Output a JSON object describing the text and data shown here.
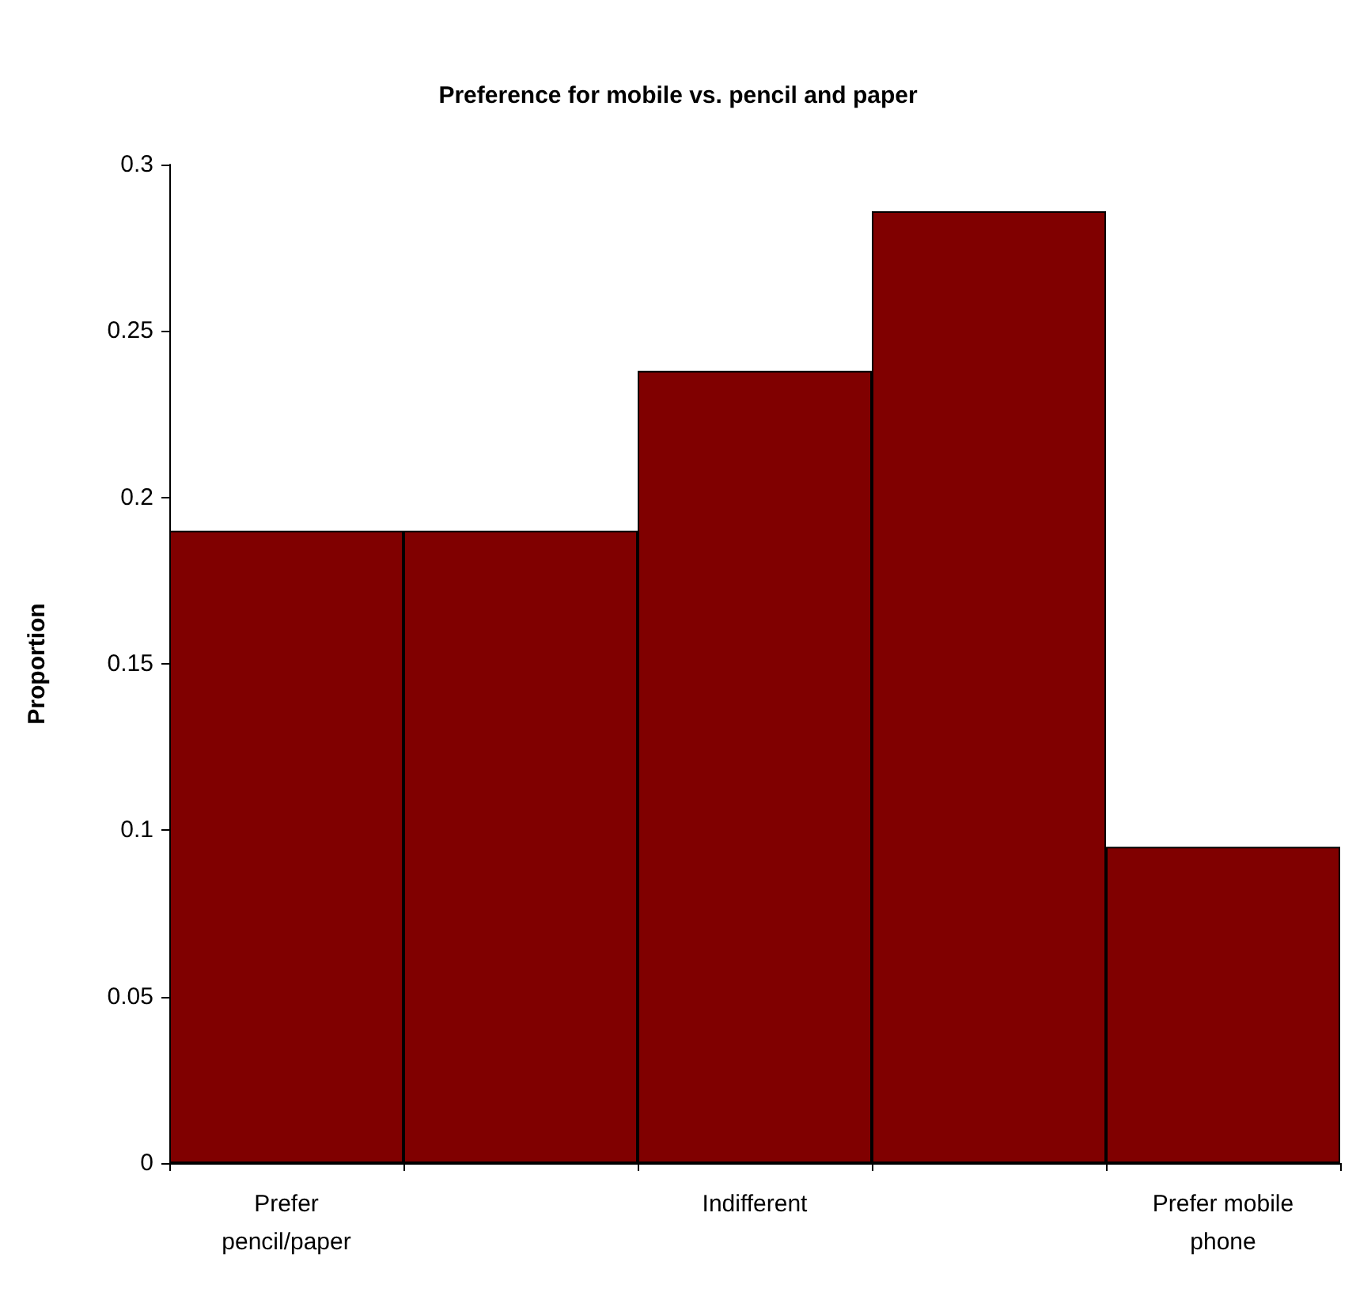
{
  "chart_data": {
    "type": "bar",
    "title": "Preference for mobile vs. pencil and paper",
    "ylabel": "Proportion",
    "categories": [
      "Prefer\npencil/paper",
      null,
      "Indifferent",
      null,
      "Prefer mobile\nphone"
    ],
    "values": [
      0.19,
      0.19,
      0.238,
      0.286,
      0.095
    ],
    "color": "#800000",
    "ylim": [
      0,
      0.3
    ],
    "yticks": [
      0,
      0.05,
      0.1,
      0.15,
      0.2,
      0.25,
      0.3
    ],
    "grid": false
  }
}
